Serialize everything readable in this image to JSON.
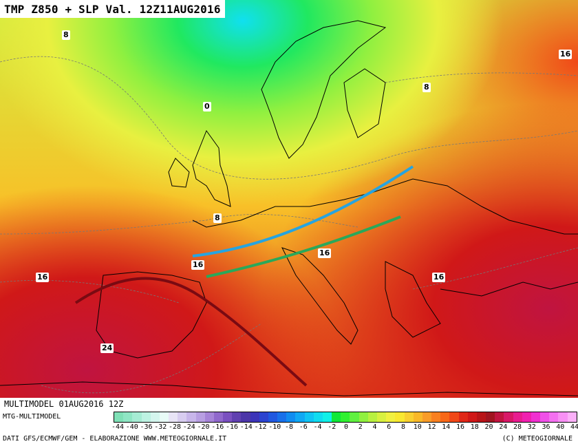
{
  "title": "TMP Z850 + SLP Val. 12Z11AUG2016",
  "run_info": "MULTIMODEL 01AUG2016 12Z",
  "model_label": "MTG-MULTIMODEL",
  "credits": "DATI GFS/ECMWF/GEM - ELABORAZIONE WWW.METEOGIORNALE.IT",
  "copyright": "(C) METEOGIORNALE",
  "isotherm_labels": [
    "8",
    "8",
    "8",
    "0",
    "16",
    "16",
    "16",
    "16",
    "16",
    "16",
    "24"
  ],
  "legend_ticks": [
    "-44",
    "-40",
    "-36",
    "-32",
    "-28",
    "-24",
    "-20",
    "-16",
    "-16",
    "-14",
    "-12",
    "-10",
    "-8",
    "-6",
    "-4",
    "-2",
    "0",
    "2",
    "4",
    "6",
    "8",
    "10",
    "12",
    "14",
    "16",
    "18",
    "20",
    "24",
    "28",
    "32",
    "36",
    "40",
    "44"
  ],
  "legend_colors": [
    "#7fe0b6",
    "#8fe6c4",
    "#a6ecd4",
    "#bdf2e2",
    "#d4f6ee",
    "#e8fbf7",
    "#e8e4f6",
    "#d8cdf0",
    "#c8b6ea",
    "#b89fe2",
    "#a684d8",
    "#9068cc",
    "#7a50c0",
    "#6040b0",
    "#4c36a8",
    "#3c34b8",
    "#2c44d0",
    "#2058e0",
    "#1870ea",
    "#108cf0",
    "#10a8f4",
    "#10c4f4",
    "#10dcf0",
    "#10f0e8",
    "#10e838",
    "#30f030",
    "#60f040",
    "#90f040",
    "#b8f040",
    "#d8f040",
    "#f0f040",
    "#f8e830",
    "#f8d030",
    "#f8b828",
    "#f89c28",
    "#f88020",
    "#f86818",
    "#f04818",
    "#e02818",
    "#d01818",
    "#b81418",
    "#a01420",
    "#c01440",
    "#d81868",
    "#e81c90",
    "#f020b0",
    "#f030d0",
    "#f050e8",
    "#f470f0",
    "#f890f4",
    "#fbb0f8"
  ],
  "fronts": [
    {
      "name": "blue trend line",
      "color": "#26a4e0"
    },
    {
      "name": "green trend line",
      "color": "#2aa85a"
    },
    {
      "name": "dark red ridge axis",
      "color": "#7a0a12"
    }
  ]
}
